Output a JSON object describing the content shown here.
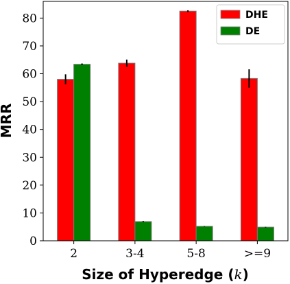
{
  "chart_data": {
    "type": "bar",
    "categories": [
      "2",
      "3-4",
      "5-8",
      ">=9"
    ],
    "series": [
      {
        "name": "DHE",
        "values": [
          58,
          63.8,
          82.5,
          58.3
        ],
        "errors": [
          1.8,
          1.3,
          0.3,
          3.3
        ],
        "color": "#ff0000"
      },
      {
        "name": "DE",
        "values": [
          63.4,
          6.9,
          5.2,
          4.9
        ],
        "errors": [
          0.3,
          0.2,
          0.1,
          0.1
        ],
        "color": "#008000"
      }
    ],
    "xlabel_text": "Size of Hyperedge ",
    "xlabel_var": "k",
    "ylabel": "MRR",
    "ylim": [
      0,
      86
    ],
    "yticks": [
      0,
      10,
      20,
      30,
      40,
      50,
      60,
      70,
      80
    ],
    "legend_position": "top-right",
    "grid": false
  }
}
